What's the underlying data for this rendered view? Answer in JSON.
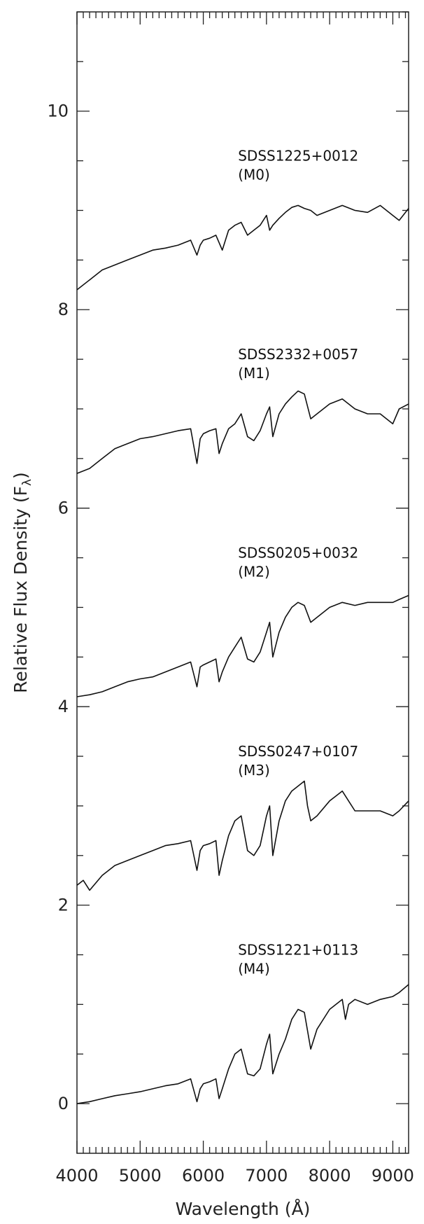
{
  "chart_data": {
    "type": "line",
    "xlabel": "Wavelength (Å)",
    "ylabel": "Relative Flux Density (F",
    "ylabel_subscript": "λ",
    "ylabel_close": ")",
    "xlim": [
      4000,
      9250
    ],
    "ylim": [
      -0.5,
      11
    ],
    "x_ticks": [
      4000,
      5000,
      6000,
      7000,
      8000,
      9000
    ],
    "x_tick_labels": [
      "4000",
      "5000",
      "6000",
      "7000",
      "8000",
      "9000"
    ],
    "y_ticks": [
      0,
      2,
      4,
      6,
      8,
      10
    ],
    "y_tick_labels": [
      "0",
      "2",
      "4",
      "6",
      "8",
      "10"
    ],
    "grid": false,
    "series": [
      {
        "name": "SDSS1225+0012",
        "label_lines": [
          "SDSS1225+0012",
          "(M0)"
        ],
        "label_pos": [
          6550,
          9.5
        ],
        "x": [
          4000,
          4200,
          4400,
          4600,
          4800,
          5000,
          5200,
          5400,
          5600,
          5800,
          5900,
          5950,
          6000,
          6100,
          6200,
          6300,
          6400,
          6500,
          6600,
          6700,
          6800,
          6900,
          7000,
          7050,
          7100,
          7200,
          7300,
          7400,
          7500,
          7600,
          7700,
          7800,
          8000,
          8200,
          8400,
          8600,
          8800,
          9000,
          9100,
          9250
        ],
        "y": [
          8.2,
          8.3,
          8.4,
          8.45,
          8.5,
          8.55,
          8.6,
          8.62,
          8.65,
          8.7,
          8.55,
          8.65,
          8.7,
          8.72,
          8.75,
          8.6,
          8.8,
          8.85,
          8.88,
          8.75,
          8.8,
          8.85,
          8.95,
          8.8,
          8.85,
          8.92,
          8.98,
          9.03,
          9.05,
          9.02,
          9.0,
          8.95,
          9.0,
          9.05,
          9.0,
          8.98,
          9.05,
          8.95,
          8.9,
          9.02
        ]
      },
      {
        "name": "SDSS2332+0057",
        "label_lines": [
          "SDSS2332+0057",
          "(M1)"
        ],
        "label_pos": [
          6550,
          7.5
        ],
        "x": [
          4000,
          4200,
          4400,
          4600,
          4800,
          5000,
          5200,
          5400,
          5600,
          5800,
          5900,
          5950,
          6000,
          6100,
          6200,
          6250,
          6300,
          6400,
          6500,
          6600,
          6700,
          6800,
          6900,
          7000,
          7050,
          7100,
          7200,
          7300,
          7400,
          7500,
          7600,
          7700,
          7800,
          8000,
          8200,
          8400,
          8600,
          8800,
          9000,
          9100,
          9250
        ],
        "y": [
          6.35,
          6.4,
          6.5,
          6.6,
          6.65,
          6.7,
          6.72,
          6.75,
          6.78,
          6.8,
          6.45,
          6.7,
          6.75,
          6.78,
          6.8,
          6.55,
          6.65,
          6.8,
          6.85,
          6.95,
          6.72,
          6.68,
          6.78,
          6.95,
          7.02,
          6.72,
          6.95,
          7.05,
          7.12,
          7.18,
          7.15,
          6.9,
          6.95,
          7.05,
          7.1,
          7.0,
          6.95,
          6.95,
          6.85,
          7.0,
          7.05
        ]
      },
      {
        "name": "SDSS0205+0032",
        "label_lines": [
          "SDSS0205+0032",
          "(M2)"
        ],
        "label_pos": [
          6550,
          5.5
        ],
        "x": [
          4000,
          4200,
          4400,
          4600,
          4800,
          5000,
          5200,
          5400,
          5600,
          5800,
          5900,
          5950,
          6000,
          6100,
          6200,
          6250,
          6300,
          6400,
          6500,
          6600,
          6700,
          6800,
          6900,
          7000,
          7050,
          7100,
          7200,
          7300,
          7400,
          7500,
          7600,
          7700,
          7800,
          8000,
          8200,
          8400,
          8600,
          8800,
          9000,
          9100,
          9250
        ],
        "y": [
          4.1,
          4.12,
          4.15,
          4.2,
          4.25,
          4.28,
          4.3,
          4.35,
          4.4,
          4.45,
          4.2,
          4.4,
          4.42,
          4.45,
          4.48,
          4.25,
          4.35,
          4.5,
          4.6,
          4.7,
          4.48,
          4.45,
          4.55,
          4.75,
          4.85,
          4.5,
          4.75,
          4.9,
          5.0,
          5.05,
          5.02,
          4.85,
          4.9,
          5.0,
          5.05,
          5.02,
          5.05,
          5.05,
          5.05,
          5.08,
          5.12
        ]
      },
      {
        "name": "SDSS0247+0107",
        "label_lines": [
          "SDSS0247+0107",
          "(M3)"
        ],
        "label_pos": [
          6550,
          3.5
        ],
        "x": [
          4000,
          4100,
          4200,
          4400,
          4600,
          4800,
          5000,
          5200,
          5400,
          5600,
          5800,
          5900,
          5950,
          6000,
          6100,
          6200,
          6250,
          6300,
          6400,
          6500,
          6600,
          6700,
          6800,
          6900,
          7000,
          7050,
          7100,
          7200,
          7300,
          7400,
          7500,
          7600,
          7650,
          7700,
          7800,
          8000,
          8100,
          8200,
          8300,
          8400,
          8600,
          8800,
          9000,
          9100,
          9250
        ],
        "y": [
          2.2,
          2.25,
          2.15,
          2.3,
          2.4,
          2.45,
          2.5,
          2.55,
          2.6,
          2.62,
          2.65,
          2.35,
          2.55,
          2.6,
          2.62,
          2.65,
          2.3,
          2.45,
          2.7,
          2.85,
          2.9,
          2.55,
          2.5,
          2.6,
          2.9,
          3.0,
          2.5,
          2.85,
          3.05,
          3.15,
          3.2,
          3.25,
          3.0,
          2.85,
          2.9,
          3.05,
          3.1,
          3.15,
          3.05,
          2.95,
          2.95,
          2.95,
          2.9,
          2.95,
          3.05
        ]
      },
      {
        "name": "SDSS1221+0113",
        "label_lines": [
          "SDSS1221+0113",
          "(M4)"
        ],
        "label_pos": [
          6550,
          1.5
        ],
        "x": [
          4000,
          4200,
          4400,
          4600,
          4800,
          5000,
          5200,
          5400,
          5600,
          5800,
          5900,
          5950,
          6000,
          6100,
          6200,
          6250,
          6300,
          6400,
          6500,
          6600,
          6700,
          6800,
          6900,
          7000,
          7050,
          7100,
          7200,
          7300,
          7400,
          7500,
          7600,
          7700,
          7800,
          8000,
          8200,
          8250,
          8300,
          8400,
          8600,
          8800,
          9000,
          9100,
          9250
        ],
        "y": [
          0.0,
          0.02,
          0.05,
          0.08,
          0.1,
          0.12,
          0.15,
          0.18,
          0.2,
          0.25,
          0.02,
          0.15,
          0.2,
          0.22,
          0.25,
          0.05,
          0.15,
          0.35,
          0.5,
          0.55,
          0.3,
          0.28,
          0.35,
          0.6,
          0.7,
          0.3,
          0.5,
          0.65,
          0.85,
          0.95,
          0.92,
          0.55,
          0.75,
          0.95,
          1.05,
          0.85,
          1.0,
          1.05,
          1.0,
          1.05,
          1.08,
          1.12,
          1.2
        ]
      }
    ]
  }
}
